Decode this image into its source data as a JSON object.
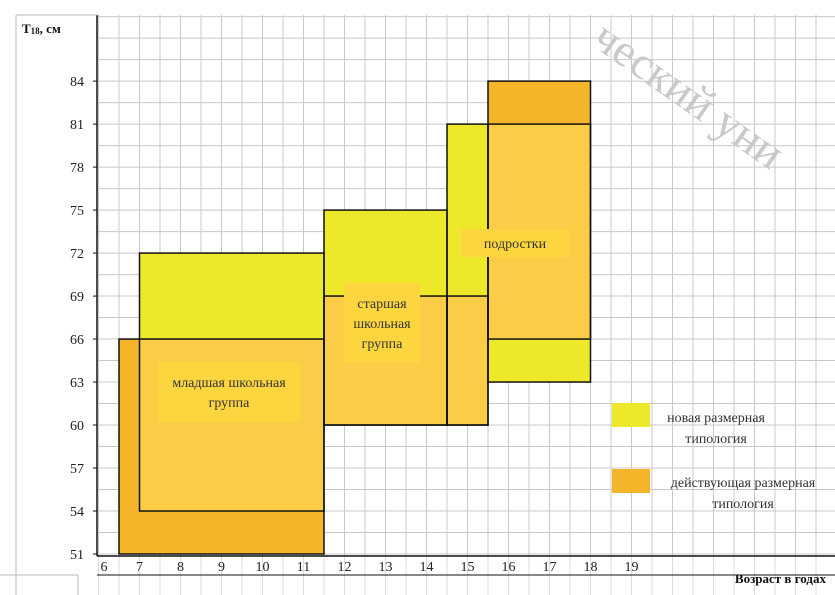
{
  "chart_data": {
    "type": "range-bar",
    "ylabel": "T18, см",
    "ylabel_main": "T",
    "ylabel_sub": "18",
    "ylabel_rest": ", см",
    "xlabel": "Возраст в годах",
    "x_ticks": [
      "6",
      "7",
      "8",
      "9",
      "10",
      "11",
      "12",
      "13",
      "14",
      "15",
      "16",
      "17",
      "18",
      "19"
    ],
    "y_ticks": [
      51,
      54,
      57,
      60,
      63,
      66,
      69,
      72,
      75,
      78,
      81,
      84
    ],
    "ylim": [
      51,
      86
    ],
    "grid": true,
    "colors": {
      "new": "#eee82a",
      "current": "#f4b52a",
      "label_bg": "#fdd53e"
    },
    "series": [
      {
        "name": "новая размерная типология",
        "key": "new",
        "bars": [
          {
            "x0": 7,
            "x1": 11.5,
            "y0": 54,
            "y1": 72
          },
          {
            "x0": 11.5,
            "x1": 14.5,
            "y0": 60,
            "y1": 75
          },
          {
            "x0": 14.5,
            "x1": 15.5,
            "y0": 60,
            "y1": 81
          },
          {
            "x0": 15.5,
            "x1": 18,
            "y0": 63,
            "y1": 81
          }
        ]
      },
      {
        "name": "действующая размерная типология",
        "key": "current",
        "bars": [
          {
            "x0": 6.5,
            "x1": 11.5,
            "y0": 51,
            "y1": 66
          },
          {
            "x0": 11.5,
            "x1": 14.5,
            "y0": 60,
            "y1": 69
          },
          {
            "x0": 14.5,
            "x1": 15.5,
            "y0": 60,
            "y1": 69
          },
          {
            "x0": 15.5,
            "x1": 18,
            "y0": 66,
            "y1": 84
          }
        ]
      }
    ],
    "groups": [
      {
        "lines": [
          "младшая школьная",
          "группа"
        ]
      },
      {
        "lines": [
          "старшая",
          "школьная",
          "группа"
        ]
      },
      {
        "lines": [
          "подростки"
        ]
      }
    ],
    "legend": [
      {
        "lines": [
          "новая размерная",
          "типология"
        ],
        "key": "new"
      },
      {
        "lines": [
          "действующая размерная",
          "типология"
        ],
        "key": "current"
      }
    ],
    "legend_position": "right"
  },
  "watermark": "ческий уни"
}
